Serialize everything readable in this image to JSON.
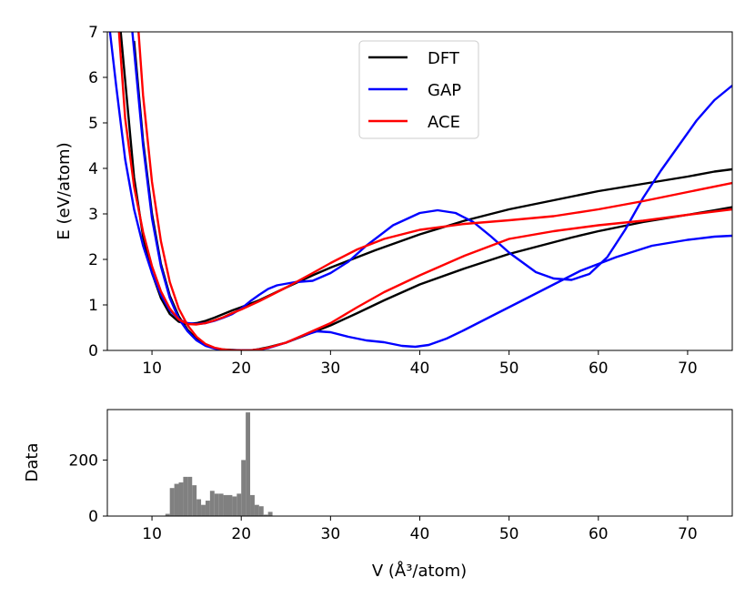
{
  "chart_data": [
    {
      "type": "line",
      "title": "",
      "xlabel": "",
      "ylabel": "E (eV/atom)",
      "xlim": [
        5,
        75
      ],
      "ylim": [
        0,
        7
      ],
      "x_ticks": [
        10,
        20,
        30,
        40,
        50,
        60,
        70
      ],
      "y_ticks": [
        0,
        1,
        2,
        3,
        4,
        5,
        6,
        7
      ],
      "grid": false,
      "legend_position": "top-center",
      "series": [
        {
          "name": "DFT",
          "color": "#000000",
          "branches": [
            {
              "x": [
                8,
                9,
                10,
                11,
                12,
                13,
                14,
                15,
                16,
                17,
                18,
                19,
                20,
                21,
                22,
                23,
                25,
                27,
                30,
                33,
                36,
                40,
                45,
                50,
                57,
                60,
                65,
                70,
                73,
                75
              ],
              "y": [
                6.8,
                4.6,
                3.0,
                1.9,
                1.2,
                0.75,
                0.45,
                0.25,
                0.12,
                0.05,
                0.02,
                0.01,
                0.0,
                0.0,
                0.03,
                0.07,
                0.17,
                0.32,
                0.55,
                0.82,
                1.1,
                1.45,
                1.8,
                2.12,
                2.48,
                2.62,
                2.82,
                2.98,
                3.08,
                3.15
              ]
            },
            {
              "x": [
                6.5,
                8,
                9,
                10,
                11,
                12,
                13,
                14,
                15,
                16,
                17,
                18,
                19,
                20,
                22,
                25,
                28,
                30,
                35,
                40,
                45,
                50,
                55,
                57,
                60,
                65,
                70,
                73,
                75
              ],
              "y": [
                7.0,
                3.8,
                2.5,
                1.7,
                1.15,
                0.8,
                0.63,
                0.58,
                0.6,
                0.65,
                0.72,
                0.8,
                0.88,
                0.95,
                1.1,
                1.38,
                1.65,
                1.82,
                2.2,
                2.55,
                2.85,
                3.1,
                3.3,
                3.38,
                3.5,
                3.66,
                3.82,
                3.93,
                3.98
              ]
            }
          ]
        },
        {
          "name": "GAP",
          "color": "#0000ff",
          "branches": [
            {
              "x": [
                7.8,
                9,
                10,
                11,
                12,
                13,
                14,
                15,
                16,
                17,
                18,
                19,
                20,
                21,
                22,
                23,
                25,
                27,
                28.5,
                30,
                32,
                34,
                36,
                38,
                39.5,
                41,
                43,
                45,
                48,
                51,
                55,
                58,
                62,
                66,
                70,
                73,
                75
              ],
              "y": [
                7.0,
                4.5,
                2.9,
                1.85,
                1.15,
                0.7,
                0.42,
                0.22,
                0.1,
                0.04,
                0.01,
                0.0,
                0.0,
                0.0,
                0.02,
                0.05,
                0.17,
                0.33,
                0.42,
                0.4,
                0.3,
                0.22,
                0.18,
                0.1,
                0.08,
                0.12,
                0.26,
                0.45,
                0.75,
                1.05,
                1.45,
                1.75,
                2.05,
                2.3,
                2.43,
                2.5,
                2.52
              ]
            },
            {
              "x": [
                5.3,
                6,
                7,
                8,
                9,
                10,
                11,
                12,
                13,
                14,
                15,
                16,
                17,
                18,
                19,
                20,
                21,
                22,
                23,
                24,
                26,
                28,
                30,
                32,
                34,
                37,
                40,
                42,
                44,
                46,
                48,
                50,
                53,
                55,
                57,
                59,
                61,
                63,
                65,
                67,
                69,
                71,
                73,
                75
              ],
              "y": [
                7.0,
                5.8,
                4.2,
                3.1,
                2.3,
                1.7,
                1.22,
                0.88,
                0.68,
                0.6,
                0.58,
                0.6,
                0.65,
                0.72,
                0.8,
                0.92,
                1.08,
                1.22,
                1.35,
                1.43,
                1.5,
                1.53,
                1.7,
                1.95,
                2.3,
                2.75,
                3.02,
                3.08,
                3.02,
                2.82,
                2.5,
                2.15,
                1.72,
                1.58,
                1.55,
                1.68,
                2.05,
                2.65,
                3.35,
                3.95,
                4.5,
                5.05,
                5.5,
                5.82
              ]
            }
          ]
        },
        {
          "name": "ACE",
          "color": "#ff0000",
          "branches": [
            {
              "x": [
                8.5,
                9,
                10,
                11,
                12,
                13,
                14,
                15,
                16,
                17,
                18,
                19,
                20,
                21,
                22,
                23,
                25,
                27,
                30,
                33,
                36,
                40,
                45,
                50,
                55,
                60,
                65,
                70,
                75
              ],
              "y": [
                7.0,
                5.6,
                3.7,
                2.4,
                1.5,
                0.92,
                0.55,
                0.3,
                0.14,
                0.06,
                0.02,
                0.0,
                0.0,
                0.0,
                0.02,
                0.06,
                0.17,
                0.34,
                0.6,
                0.95,
                1.28,
                1.65,
                2.08,
                2.45,
                2.62,
                2.75,
                2.85,
                2.98,
                3.1
              ]
            },
            {
              "x": [
                6.3,
                7,
                8,
                9,
                10,
                11,
                12,
                13,
                14,
                15,
                16,
                17,
                18,
                19,
                20,
                22,
                25,
                28,
                30,
                33,
                36,
                40,
                45,
                50,
                55,
                60,
                65,
                70,
                75
              ],
              "y": [
                7.0,
                5.1,
                3.6,
                2.6,
                1.85,
                1.3,
                0.92,
                0.68,
                0.58,
                0.57,
                0.6,
                0.66,
                0.73,
                0.82,
                0.9,
                1.08,
                1.38,
                1.7,
                1.92,
                2.22,
                2.45,
                2.65,
                2.78,
                2.86,
                2.95,
                3.1,
                3.28,
                3.48,
                3.68
              ]
            }
          ]
        }
      ]
    },
    {
      "type": "bar",
      "title": "",
      "xlabel": "V (Å³/atom)",
      "ylabel": "Data",
      "xlim": [
        5,
        75
      ],
      "ylim": [
        0,
        380
      ],
      "x_ticks": [
        10,
        20,
        30,
        40,
        50,
        60,
        70
      ],
      "y_ticks": [
        0,
        200
      ],
      "bin_width": 0.5,
      "bin_starts": [
        11.5,
        12,
        12.5,
        13,
        13.5,
        14,
        14.5,
        15,
        15.5,
        16,
        16.5,
        17,
        17.5,
        18,
        18.5,
        19,
        19.5,
        20,
        20.5,
        21,
        21.5,
        22,
        22.5,
        23
      ],
      "values": [
        8,
        100,
        115,
        120,
        140,
        140,
        110,
        60,
        40,
        55,
        90,
        80,
        80,
        75,
        75,
        70,
        80,
        200,
        370,
        75,
        40,
        35,
        5,
        15
      ],
      "color": "#808080"
    }
  ]
}
